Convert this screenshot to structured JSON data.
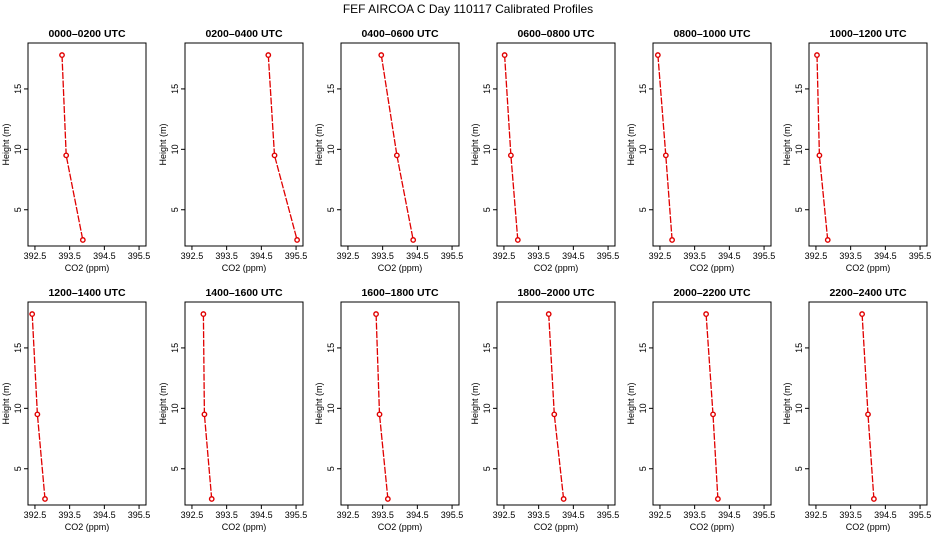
{
  "title": "FEF AIRCOA C  Day 110117  Calibrated Profiles",
  "style": {
    "series_color": "#e00000",
    "axis_color": "#000000"
  },
  "chart_data": [
    {
      "type": "line",
      "title": "0000–0200 UTC",
      "xlabel": "CO2 (ppm)",
      "ylabel": "Height (m)",
      "xlim": [
        392.3,
        395.7
      ],
      "ylim": [
        2,
        18.8
      ],
      "xticks": [
        "392.5",
        "393.5",
        "394.5",
        "395.5"
      ],
      "yticks": [
        "5",
        "10",
        "15"
      ],
      "points": [
        {
          "x": 393.28,
          "y": 17.8
        },
        {
          "x": 393.4,
          "y": 9.5
        },
        {
          "x": 393.88,
          "y": 2.5
        }
      ]
    },
    {
      "type": "line",
      "title": "0200–0400 UTC",
      "xlabel": "CO2 (ppm)",
      "ylabel": "Height (m)",
      "xlim": [
        392.3,
        395.7
      ],
      "ylim": [
        2,
        18.8
      ],
      "xticks": [
        "392.5",
        "393.5",
        "394.5",
        "395.5"
      ],
      "yticks": [
        "5",
        "10",
        "15"
      ],
      "points": [
        {
          "x": 394.7,
          "y": 17.8
        },
        {
          "x": 394.88,
          "y": 9.5
        },
        {
          "x": 395.53,
          "y": 2.5
        }
      ]
    },
    {
      "type": "line",
      "title": "0400–0600 UTC",
      "xlabel": "CO2 (ppm)",
      "ylabel": "Height (m)",
      "xlim": [
        392.3,
        395.7
      ],
      "ylim": [
        2,
        18.8
      ],
      "xticks": [
        "392.5",
        "393.5",
        "394.5",
        "395.5"
      ],
      "yticks": [
        "5",
        "10",
        "15"
      ],
      "points": [
        {
          "x": 393.46,
          "y": 17.8
        },
        {
          "x": 393.91,
          "y": 9.5
        },
        {
          "x": 394.38,
          "y": 2.5
        }
      ]
    },
    {
      "type": "line",
      "title": "0600–0800 UTC",
      "xlabel": "CO2 (ppm)",
      "ylabel": "Height (m)",
      "xlim": [
        392.3,
        395.7
      ],
      "ylim": [
        2,
        18.8
      ],
      "xticks": [
        "392.5",
        "393.5",
        "394.5",
        "395.5"
      ],
      "yticks": [
        "5",
        "10",
        "15"
      ],
      "points": [
        {
          "x": 392.52,
          "y": 17.8
        },
        {
          "x": 392.7,
          "y": 9.5
        },
        {
          "x": 392.9,
          "y": 2.5
        }
      ]
    },
    {
      "type": "line",
      "title": "0800–1000 UTC",
      "xlabel": "CO2 (ppm)",
      "ylabel": "Height (m)",
      "xlim": [
        392.3,
        395.7
      ],
      "ylim": [
        2,
        18.8
      ],
      "xticks": [
        "392.5",
        "393.5",
        "394.5",
        "395.5"
      ],
      "yticks": [
        "5",
        "10",
        "15"
      ],
      "points": [
        {
          "x": 392.44,
          "y": 17.8
        },
        {
          "x": 392.67,
          "y": 9.5
        },
        {
          "x": 392.85,
          "y": 2.5
        }
      ]
    },
    {
      "type": "line",
      "title": "1000–1200 UTC",
      "xlabel": "CO2 (ppm)",
      "ylabel": "Height (m)",
      "xlim": [
        392.3,
        395.7
      ],
      "ylim": [
        2,
        18.8
      ],
      "xticks": [
        "392.5",
        "393.5",
        "394.5",
        "395.5"
      ],
      "yticks": [
        "5",
        "10",
        "15"
      ],
      "points": [
        {
          "x": 392.53,
          "y": 17.8
        },
        {
          "x": 392.6,
          "y": 9.5
        },
        {
          "x": 392.84,
          "y": 2.5
        }
      ]
    },
    {
      "type": "line",
      "title": "1200–1400 UTC",
      "xlabel": "CO2 (ppm)",
      "ylabel": "Height (m)",
      "xlim": [
        392.3,
        395.7
      ],
      "ylim": [
        2,
        18.8
      ],
      "xticks": [
        "392.5",
        "393.5",
        "394.5",
        "395.5"
      ],
      "yticks": [
        "5",
        "10",
        "15"
      ],
      "points": [
        {
          "x": 392.42,
          "y": 17.8
        },
        {
          "x": 392.57,
          "y": 9.5
        },
        {
          "x": 392.79,
          "y": 2.5
        }
      ]
    },
    {
      "type": "line",
      "title": "1400–1600 UTC",
      "xlabel": "CO2 (ppm)",
      "ylabel": "Height (m)",
      "xlim": [
        392.3,
        395.7
      ],
      "ylim": [
        2,
        18.8
      ],
      "xticks": [
        "392.5",
        "393.5",
        "394.5",
        "395.5"
      ],
      "yticks": [
        "5",
        "10",
        "15"
      ],
      "points": [
        {
          "x": 392.83,
          "y": 17.8
        },
        {
          "x": 392.86,
          "y": 9.5
        },
        {
          "x": 393.07,
          "y": 2.5
        }
      ]
    },
    {
      "type": "line",
      "title": "1600–1800 UTC",
      "xlabel": "CO2 (ppm)",
      "ylabel": "Height (m)",
      "xlim": [
        392.3,
        395.7
      ],
      "ylim": [
        2,
        18.8
      ],
      "xticks": [
        "392.5",
        "393.5",
        "394.5",
        "395.5"
      ],
      "yticks": [
        "5",
        "10",
        "15"
      ],
      "points": [
        {
          "x": 393.31,
          "y": 17.8
        },
        {
          "x": 393.41,
          "y": 9.5
        },
        {
          "x": 393.65,
          "y": 2.5
        }
      ]
    },
    {
      "type": "line",
      "title": "1800–2000 UTC",
      "xlabel": "CO2 (ppm)",
      "ylabel": "Height (m)",
      "xlim": [
        392.3,
        395.7
      ],
      "ylim": [
        2,
        18.8
      ],
      "xticks": [
        "392.5",
        "393.5",
        "394.5",
        "395.5"
      ],
      "yticks": [
        "5",
        "10",
        "15"
      ],
      "points": [
        {
          "x": 393.79,
          "y": 17.8
        },
        {
          "x": 393.95,
          "y": 9.5
        },
        {
          "x": 394.22,
          "y": 2.5
        }
      ]
    },
    {
      "type": "line",
      "title": "2000–2200 UTC",
      "xlabel": "CO2 (ppm)",
      "ylabel": "Height (m)",
      "xlim": [
        392.3,
        395.7
      ],
      "ylim": [
        2,
        18.8
      ],
      "xticks": [
        "392.5",
        "393.5",
        "394.5",
        "395.5"
      ],
      "yticks": [
        "5",
        "10",
        "15"
      ],
      "points": [
        {
          "x": 393.83,
          "y": 17.8
        },
        {
          "x": 394.03,
          "y": 9.5
        },
        {
          "x": 394.17,
          "y": 2.5
        }
      ]
    },
    {
      "type": "line",
      "title": "2200–2400 UTC",
      "xlabel": "CO2 (ppm)",
      "ylabel": "Height (m)",
      "xlim": [
        392.3,
        395.7
      ],
      "ylim": [
        2,
        18.8
      ],
      "xticks": [
        "392.5",
        "393.5",
        "394.5",
        "395.5"
      ],
      "yticks": [
        "5",
        "10",
        "15"
      ],
      "points": [
        {
          "x": 393.83,
          "y": 17.8
        },
        {
          "x": 394.0,
          "y": 9.5
        },
        {
          "x": 394.17,
          "y": 2.5
        }
      ]
    }
  ]
}
